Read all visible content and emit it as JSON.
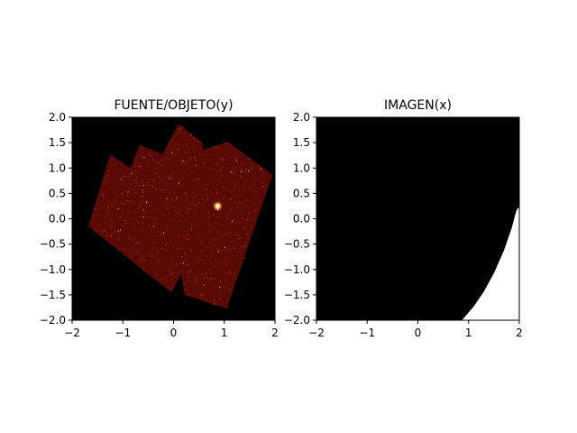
{
  "chart_data": [
    {
      "type": "heatmap",
      "title": "FUENTE/OBJETO(y)",
      "xlabel": "",
      "ylabel": "",
      "xlim": [
        -2,
        2
      ],
      "ylim": [
        -2,
        2
      ],
      "xticks": [
        -2,
        -1,
        0,
        1,
        2
      ],
      "yticks": [
        -2.0,
        -1.5,
        -1.0,
        -0.5,
        0.0,
        0.5,
        1.0,
        1.5,
        2.0
      ],
      "xtick_labels": [
        "−2",
        "−1",
        "0",
        "1",
        "2"
      ],
      "ytick_labels": [
        "−2.0",
        "−1.5",
        "−1.0",
        "−0.5",
        "0.0",
        "0.5",
        "1.0",
        "1.5",
        "2.0"
      ],
      "background_color": "#000000",
      "colormap": "hot",
      "region_color": "#5a0a04",
      "footprint": [
        [
          -1.68,
          -0.15
        ],
        [
          -1.25,
          1.27
        ],
        [
          -0.85,
          1.0
        ],
        [
          -0.67,
          1.45
        ],
        [
          -0.22,
          1.27
        ],
        [
          0.1,
          1.87
        ],
        [
          0.57,
          1.5
        ],
        [
          0.57,
          1.35
        ],
        [
          1.07,
          1.52
        ],
        [
          1.95,
          0.87
        ],
        [
          1.05,
          -1.77
        ],
        [
          0.22,
          -1.5
        ],
        [
          0.15,
          -1.1
        ],
        [
          -0.05,
          -1.45
        ]
      ],
      "bright_source": {
        "x": 0.87,
        "y": 0.25
      }
    },
    {
      "type": "heatmap",
      "title": "IMAGEN(x)",
      "xlabel": "",
      "ylabel": "",
      "xlim": [
        -2,
        2
      ],
      "ylim": [
        -2,
        2
      ],
      "xticks": [
        -2,
        -1,
        0,
        1,
        2
      ],
      "yticks": [
        -2.0,
        -1.5,
        -1.0,
        -0.5,
        0.0,
        0.5,
        1.0,
        1.5,
        2.0
      ],
      "xtick_labels": [
        "−2",
        "−1",
        "0",
        "1",
        "2"
      ],
      "ytick_labels": [
        "−2.0",
        "−1.5",
        "−1.0",
        "−0.5",
        "0.0",
        "0.5",
        "1.0",
        "1.5",
        "2.0"
      ],
      "background_color": "#000000",
      "region_color": "#ffffff",
      "boundary": [
        [
          0.87,
          -2.0
        ],
        [
          1.1,
          -1.73
        ],
        [
          1.3,
          -1.44
        ],
        [
          1.5,
          -1.07
        ],
        [
          1.7,
          -0.62
        ],
        [
          1.85,
          -0.18
        ],
        [
          1.93,
          0.12
        ],
        [
          1.96,
          0.2
        ],
        [
          2.0,
          0.22
        ]
      ]
    }
  ]
}
